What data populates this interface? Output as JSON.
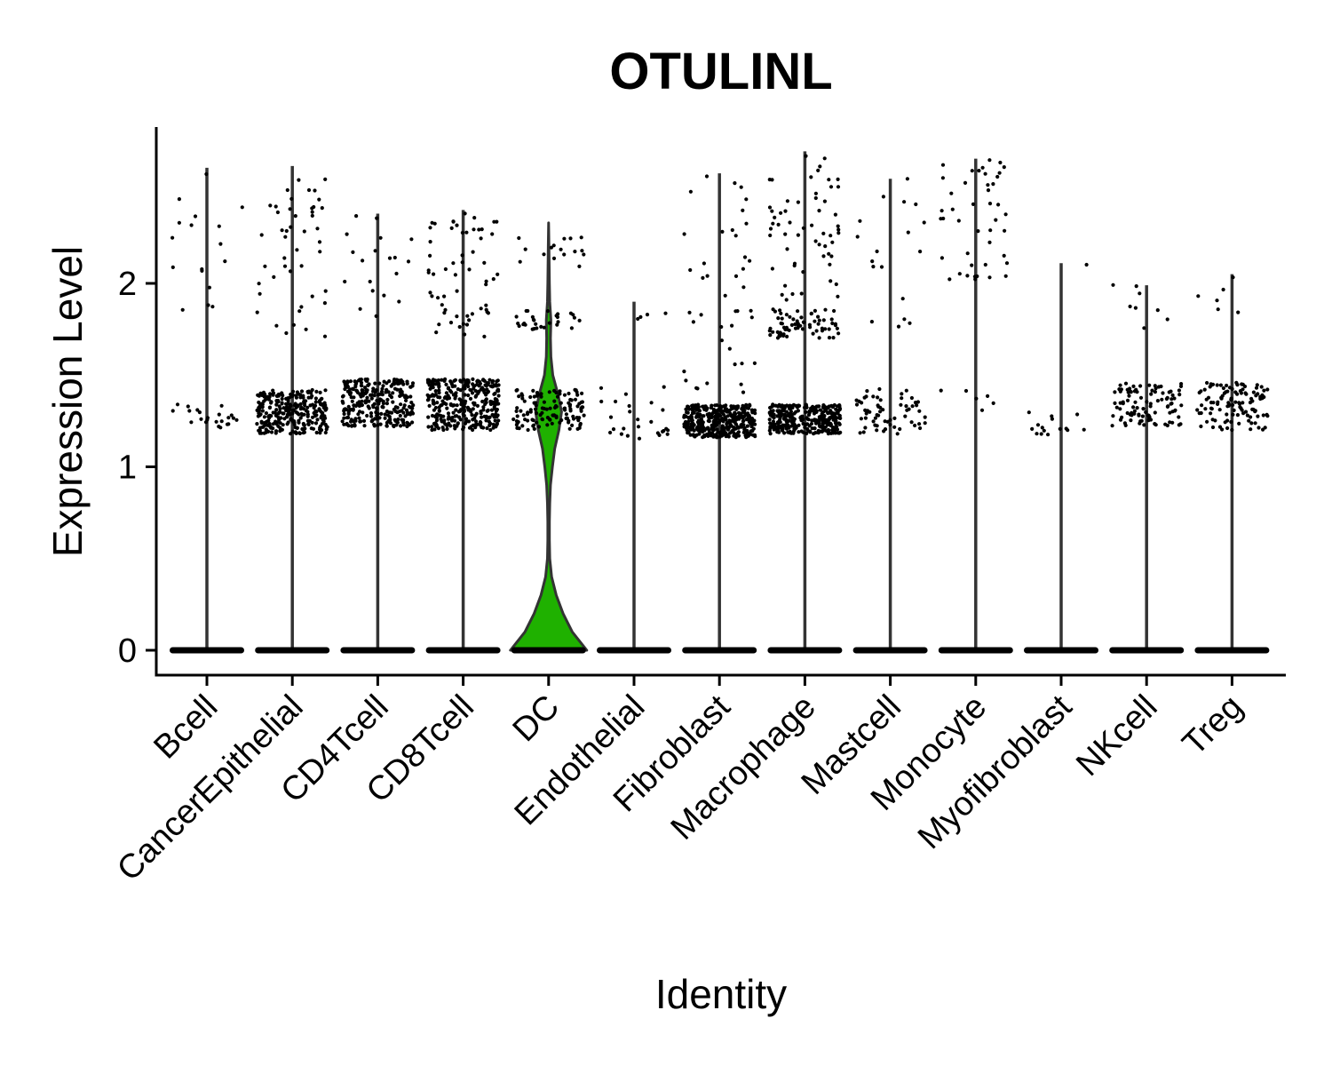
{
  "chart_data": {
    "type": "violin",
    "title": "OTULINL",
    "xlabel": "Identity",
    "ylabel": "Expression Level",
    "ylim": [
      -0.14,
      2.86
    ],
    "yticks": [
      0,
      1,
      2
    ],
    "categories": [
      "Bcell",
      "CancerEpithelial",
      "CD4Tcell",
      "CD8Tcell",
      "DC",
      "Endothelial",
      "Fibroblast",
      "Macrophage",
      "Mastcell",
      "Monocyte",
      "Myofibroblast",
      "NKcell",
      "Treg"
    ],
    "max_values": [
      2.63,
      2.64,
      2.38,
      2.4,
      2.33,
      1.9,
      2.6,
      2.72,
      2.57,
      2.68,
      2.11,
      1.99,
      2.05
    ],
    "highlight": {
      "category": "DC",
      "fill": "#1fb100"
    },
    "dots_color": "#000000",
    "nonzero_points": {
      "Bcell": {
        "n": 40,
        "bands": [
          [
            1.2,
            1.35,
            0.7
          ],
          [
            1.7,
            2.6,
            0.3
          ]
        ]
      },
      "CancerEpithelial": {
        "n": 330,
        "bands": [
          [
            1.18,
            1.42,
            0.88
          ],
          [
            1.7,
            2.6,
            0.12
          ]
        ]
      },
      "CD4Tcell": {
        "n": 300,
        "bands": [
          [
            1.22,
            1.48,
            0.93
          ],
          [
            1.8,
            2.4,
            0.07
          ]
        ]
      },
      "CD8Tcell": {
        "n": 380,
        "bands": [
          [
            1.2,
            1.48,
            0.85
          ],
          [
            1.7,
            2.4,
            0.15
          ]
        ]
      },
      "DC": {
        "n": 170,
        "bands": [
          [
            1.2,
            1.42,
            0.72
          ],
          [
            1.75,
            1.85,
            0.18
          ],
          [
            2.0,
            2.3,
            0.1
          ]
        ]
      },
      "Endothelial": {
        "n": 30,
        "bands": [
          [
            1.15,
            1.45,
            0.85
          ],
          [
            1.8,
            1.9,
            0.15
          ]
        ]
      },
      "Fibroblast": {
        "n": 420,
        "bands": [
          [
            1.16,
            1.34,
            0.9
          ],
          [
            1.4,
            2.6,
            0.1
          ]
        ]
      },
      "Macrophage": {
        "n": 460,
        "bands": [
          [
            1.18,
            1.34,
            0.72
          ],
          [
            1.7,
            1.86,
            0.18
          ],
          [
            1.9,
            2.72,
            0.1
          ]
        ]
      },
      "Mastcell": {
        "n": 80,
        "bands": [
          [
            1.18,
            1.45,
            0.72
          ],
          [
            1.7,
            2.58,
            0.28
          ]
        ]
      },
      "Monocyte": {
        "n": 50,
        "bands": [
          [
            1.25,
            1.45,
            0.12
          ],
          [
            2.0,
            2.68,
            0.88
          ]
        ]
      },
      "Myofibroblast": {
        "n": 16,
        "bands": [
          [
            1.16,
            1.3,
            0.9
          ],
          [
            2.1,
            2.12,
            0.1
          ]
        ]
      },
      "NKcell": {
        "n": 110,
        "bands": [
          [
            1.22,
            1.46,
            0.93
          ],
          [
            1.75,
            2.0,
            0.07
          ]
        ]
      },
      "Treg": {
        "n": 120,
        "bands": [
          [
            1.2,
            1.46,
            0.93
          ],
          [
            1.8,
            2.05,
            0.07
          ]
        ]
      }
    },
    "zero_point_density": "dense",
    "dc_violin_profile": [
      [
        0.0,
        1.0
      ],
      [
        0.1,
        0.62
      ],
      [
        0.2,
        0.38
      ],
      [
        0.3,
        0.2
      ],
      [
        0.4,
        0.08
      ],
      [
        0.5,
        0.03
      ],
      [
        0.6,
        0.02
      ],
      [
        0.7,
        0.02
      ],
      [
        0.8,
        0.03
      ],
      [
        0.9,
        0.05
      ],
      [
        1.0,
        0.1
      ],
      [
        1.1,
        0.16
      ],
      [
        1.2,
        0.27
      ],
      [
        1.3,
        0.34
      ],
      [
        1.4,
        0.24
      ],
      [
        1.5,
        0.11
      ],
      [
        1.6,
        0.06
      ],
      [
        1.7,
        0.05
      ],
      [
        1.8,
        0.06
      ],
      [
        1.9,
        0.03
      ],
      [
        2.0,
        0.02
      ],
      [
        2.2,
        0.01
      ],
      [
        2.33,
        0.0
      ]
    ],
    "grid": false,
    "legend": "none"
  }
}
